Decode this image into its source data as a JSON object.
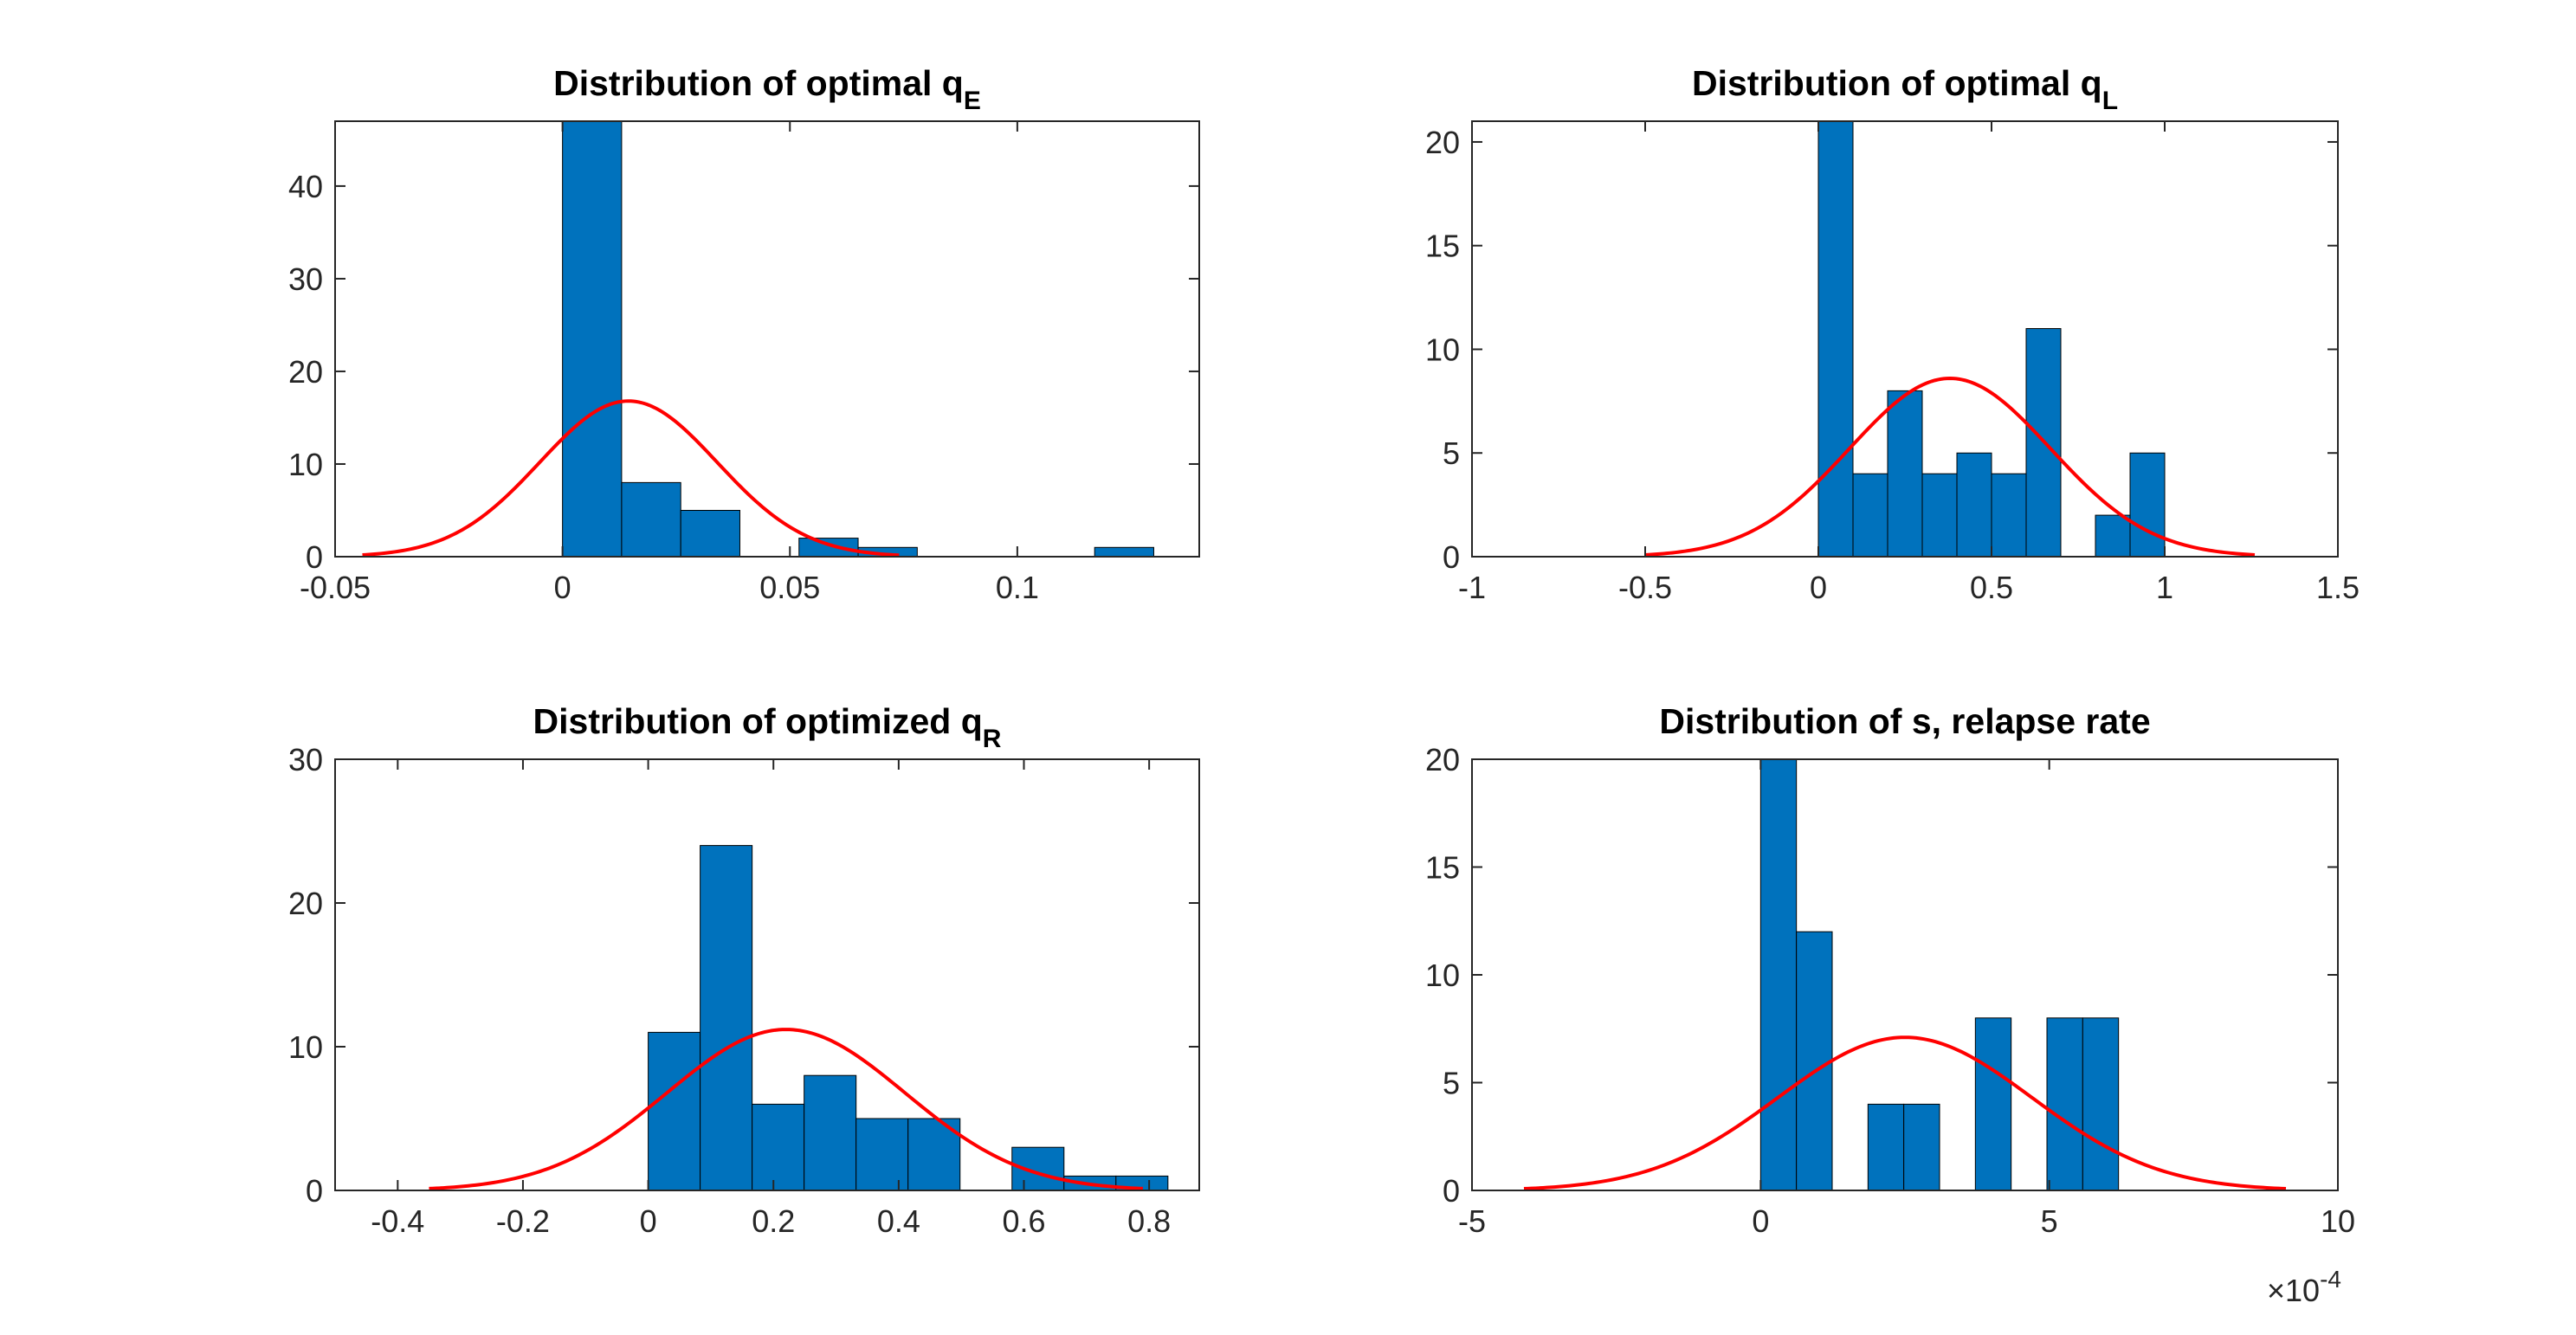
{
  "chart_data": [
    {
      "type": "bar",
      "title": "Distribution of optimal q",
      "title_sub": "E",
      "xlim": [
        -0.05,
        0.14
      ],
      "ylim": [
        0,
        47
      ],
      "xticks": [
        -0.05,
        0,
        0.05,
        0.1
      ],
      "xtick_labels": [
        "-0.05",
        "0",
        "0.05",
        "0.1"
      ],
      "yticks": [
        0,
        10,
        20,
        30,
        40
      ],
      "ytick_labels": [
        "0",
        "10",
        "20",
        "30",
        "40"
      ],
      "bin_edges": [
        0,
        0.013,
        0.026,
        0.039,
        0.052,
        0.065,
        0.078,
        0.091,
        0.104,
        0.117,
        0.13
      ],
      "counts": [
        47,
        8,
        5,
        0,
        2,
        1,
        0,
        0,
        0,
        1
      ],
      "fit": {
        "mu": 0.0145,
        "sigma": 0.0195,
        "peak": 16.8,
        "x_range": [
          -0.044,
          0.074
        ]
      },
      "bar_color": "#0072BD",
      "fit_color": "#FF0000"
    },
    {
      "type": "bar",
      "title": "Distribution of optimal q",
      "title_sub": "L",
      "xlim": [
        -1,
        1.5
      ],
      "ylim": [
        0,
        21
      ],
      "xticks": [
        -1,
        -0.5,
        0,
        0.5,
        1,
        1.5
      ],
      "xtick_labels": [
        "-1",
        "-0.5",
        "0",
        "0.5",
        "1",
        "1.5"
      ],
      "yticks": [
        0,
        5,
        10,
        15,
        20
      ],
      "ytick_labels": [
        "0",
        "5",
        "10",
        "15",
        "20"
      ],
      "bin_edges": [
        0,
        0.1,
        0.2,
        0.3,
        0.4,
        0.5,
        0.6,
        0.7,
        0.8,
        0.9,
        1.0
      ],
      "counts": [
        21,
        4,
        8,
        4,
        5,
        4,
        11,
        0,
        2,
        5
      ],
      "fit": {
        "mu": 0.38,
        "sigma": 0.29,
        "peak": 8.6,
        "x_range": [
          -0.5,
          1.26
        ]
      },
      "bar_color": "#0072BD",
      "fit_color": "#FF0000"
    },
    {
      "type": "bar",
      "title": "Distribution of optimized q",
      "title_sub": "R",
      "xlim": [
        -0.5,
        0.88
      ],
      "ylim": [
        0,
        30
      ],
      "xticks": [
        -0.4,
        -0.2,
        0,
        0.2,
        0.4,
        0.6,
        0.8
      ],
      "xtick_labels": [
        "-0.4",
        "-0.2",
        "0",
        "0.2",
        "0.4",
        "0.6",
        "0.8"
      ],
      "yticks": [
        0,
        10,
        20,
        30
      ],
      "ytick_labels": [
        "0",
        "10",
        "20",
        "30"
      ],
      "bin_edges": [
        0,
        0.083,
        0.166,
        0.249,
        0.332,
        0.415,
        0.498,
        0.581,
        0.664,
        0.747,
        0.83
      ],
      "counts": [
        11,
        24,
        6,
        8,
        5,
        5,
        0,
        3,
        1,
        1
      ],
      "fit": {
        "mu": 0.22,
        "sigma": 0.19,
        "peak": 11.2,
        "x_range": [
          -0.35,
          0.79
        ]
      },
      "bar_color": "#0072BD",
      "fit_color": "#FF0000"
    },
    {
      "type": "bar",
      "title": "Distribution of s, relapse rate",
      "title_sub": "",
      "xlim": [
        -5,
        10
      ],
      "ylim": [
        0,
        20
      ],
      "xticks": [
        -5,
        0,
        5,
        10
      ],
      "xtick_labels": [
        "-5",
        "0",
        "5",
        "10"
      ],
      "yticks": [
        0,
        5,
        10,
        15,
        20
      ],
      "ytick_labels": [
        "0",
        "5",
        "10",
        "15",
        "20"
      ],
      "bin_edges": [
        0,
        0.62,
        1.24,
        1.86,
        2.48,
        3.1,
        3.72,
        4.34,
        4.96,
        5.58,
        6.2
      ],
      "counts": [
        20,
        12,
        0,
        4,
        4,
        0,
        8,
        0,
        8,
        8
      ],
      "fit": {
        "mu": 2.5,
        "sigma": 2.2,
        "peak": 7.1,
        "x_range": [
          -4.1,
          9.1
        ]
      },
      "x_multiplier": "×10",
      "x_multiplier_exp": "-4",
      "bar_color": "#0072BD",
      "fit_color": "#FF0000"
    }
  ]
}
